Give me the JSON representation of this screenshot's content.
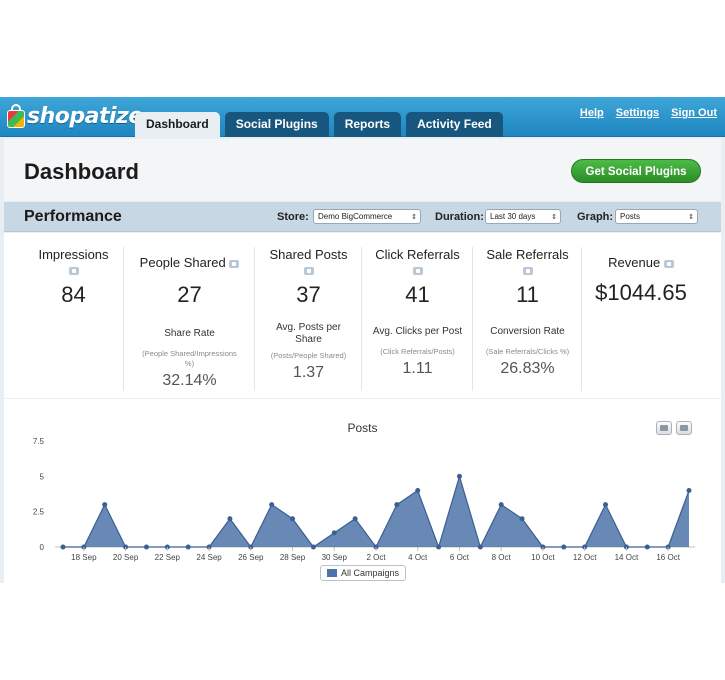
{
  "brand": {
    "name": "shopatize"
  },
  "tabs": [
    {
      "label": "Dashboard",
      "active": true
    },
    {
      "label": "Social Plugins",
      "active": false
    },
    {
      "label": "Reports",
      "active": false
    },
    {
      "label": "Activity Feed",
      "active": false
    }
  ],
  "top_links": [
    "Help",
    "Settings",
    "Sign Out"
  ],
  "header": {
    "title": "Dashboard",
    "cta_label": "Get Social Plugins"
  },
  "performance": {
    "title": "Performance",
    "store_label": "Store:",
    "store_value": "Demo BigCommerce",
    "duration_label": "Duration:",
    "duration_value": "Last 30 days",
    "graph_label": "Graph:",
    "graph_value": "Posts"
  },
  "stats": [
    {
      "label": "Impressions",
      "value": "84",
      "sub": "",
      "formula": "",
      "rate": ""
    },
    {
      "label": "People Shared",
      "value": "27",
      "sub": "Share Rate",
      "formula": "(People Shared/Impressions %)",
      "rate": "32.14%"
    },
    {
      "label": "Shared Posts",
      "value": "37",
      "sub": "Avg. Posts per Share",
      "formula": "(Posts/People Shared)",
      "rate": "1.37"
    },
    {
      "label": "Click Referrals",
      "value": "41",
      "sub": "Avg. Clicks per Post",
      "formula": "(Click Referrals/Posts)",
      "rate": "1.11"
    },
    {
      "label": "Sale Referrals",
      "value": "11",
      "sub": "Conversion Rate",
      "formula": "(Sale Referrals/Clicks %)",
      "rate": "26.83%"
    },
    {
      "label": "Revenue",
      "value": "$1044.65",
      "sub": "",
      "formula": "",
      "rate": ""
    }
  ],
  "colors": {
    "topbar": "#2a93cb",
    "green_button": "#3aa536",
    "series": "#4d74a8"
  },
  "chart_data": {
    "type": "area",
    "title": "Posts",
    "xlabel": "",
    "ylabel": "",
    "ylim": [
      0,
      7.5
    ],
    "yticks": [
      "0",
      "2.5",
      "5",
      "7.5"
    ],
    "x_tick_labels": [
      "18 Sep",
      "20 Sep",
      "22 Sep",
      "24 Sep",
      "26 Sep",
      "28 Sep",
      "30 Sep",
      "2 Oct",
      "4 Oct",
      "6 Oct",
      "8 Oct",
      "10 Oct",
      "12 Oct",
      "14 Oct",
      "16 Oct"
    ],
    "x": [
      "17 Sep",
      "18 Sep",
      "19 Sep",
      "20 Sep",
      "21 Sep",
      "22 Sep",
      "23 Sep",
      "24 Sep",
      "25 Sep",
      "26 Sep",
      "27 Sep",
      "28 Sep",
      "29 Sep",
      "30 Sep",
      "1 Oct",
      "2 Oct",
      "3 Oct",
      "4 Oct",
      "5 Oct",
      "6 Oct",
      "7 Oct",
      "8 Oct",
      "9 Oct",
      "10 Oct",
      "11 Oct",
      "12 Oct",
      "13 Oct",
      "14 Oct",
      "15 Oct",
      "16 Oct",
      "17 Oct"
    ],
    "series": [
      {
        "name": "All Campaigns",
        "values": [
          0,
          0,
          3,
          0,
          0,
          0,
          0,
          0,
          2,
          0,
          3,
          2,
          0,
          1,
          2,
          0,
          3,
          4,
          0,
          5,
          0,
          3,
          2,
          0,
          0,
          0,
          3,
          0,
          0,
          0,
          4
        ]
      }
    ],
    "legend": "bottom-center",
    "grid": false
  }
}
